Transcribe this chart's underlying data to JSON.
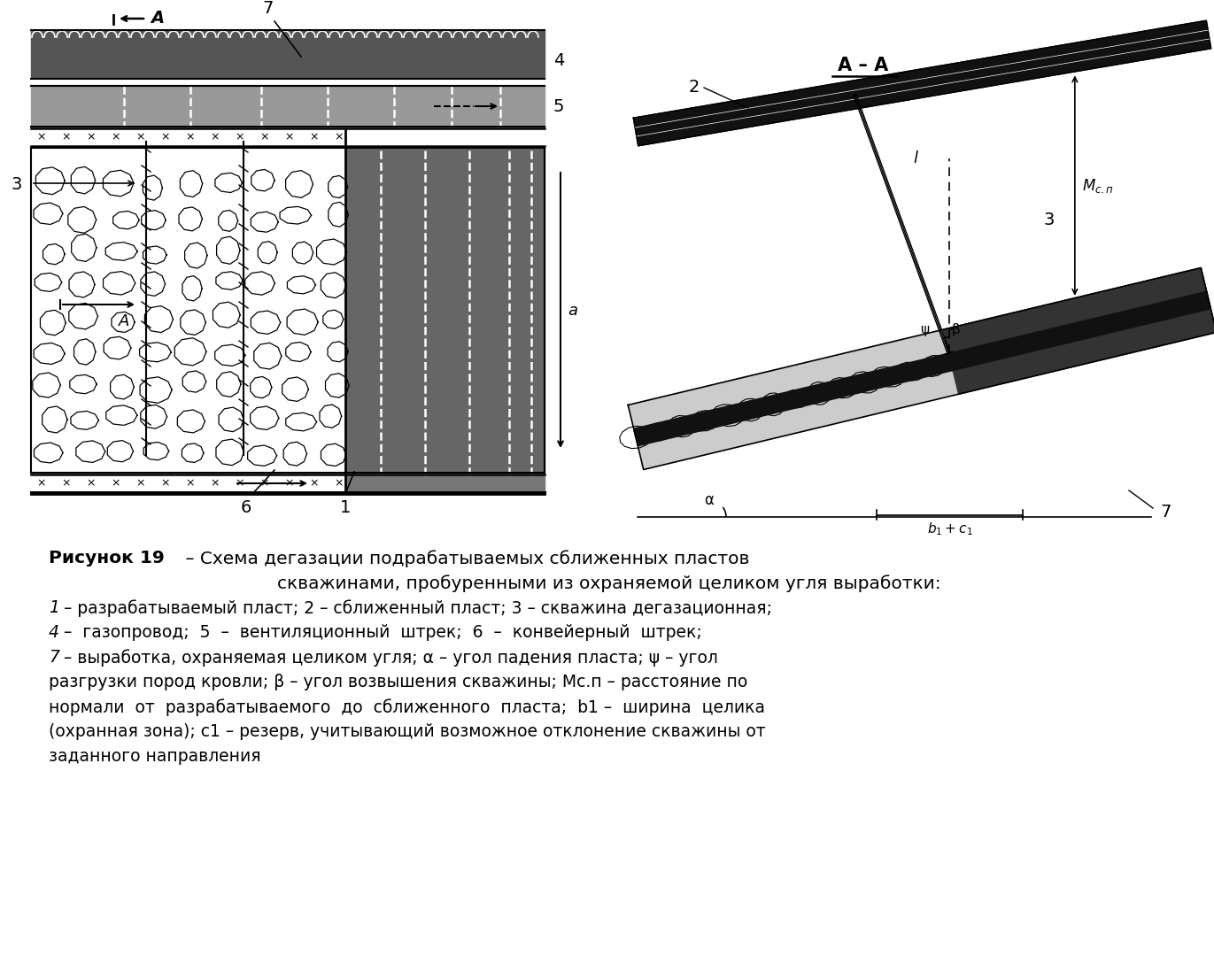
{
  "bg_color": "#ffffff",
  "fig_w": 13.71,
  "fig_h": 10.73,
  "dpi": 100
}
